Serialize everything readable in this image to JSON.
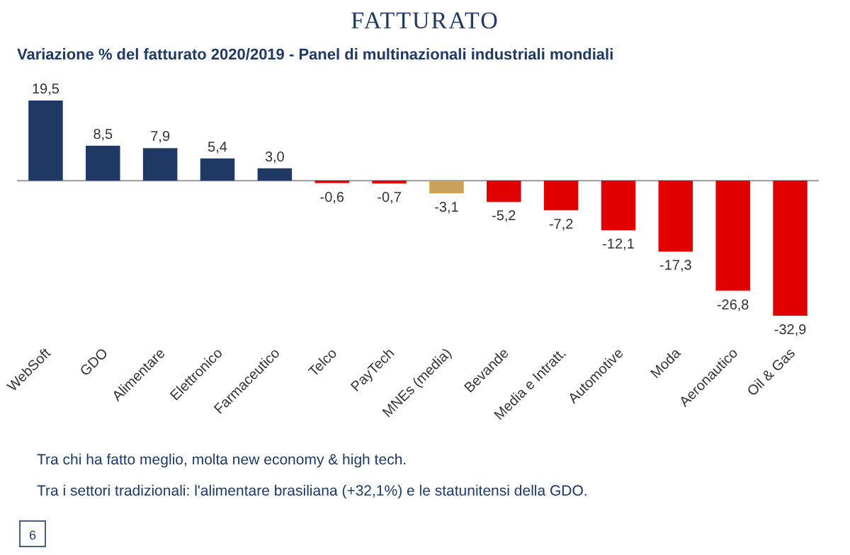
{
  "chart_data": {
    "type": "bar",
    "title": "FATTURATO",
    "subtitle": "Variazione % del fatturato 2020/2019 - Panel di multinazionali industriali mondiali",
    "categories": [
      "WebSoft",
      "GDO",
      "Alimentare",
      "Elettronico",
      "Farmaceutico",
      "Telco",
      "PayTech",
      "MNEs (media)",
      "Bevande",
      "Media e Intratt.",
      "Automotive",
      "Moda",
      "Aeronautico",
      "Oil & Gas"
    ],
    "values": [
      19.5,
      8.5,
      7.9,
      5.4,
      3.0,
      -0.6,
      -0.7,
      -3.1,
      -5.2,
      -7.2,
      -12.1,
      -17.3,
      -26.8,
      -32.9
    ],
    "colors": [
      "#1f3864",
      "#1f3864",
      "#1f3864",
      "#1f3864",
      "#1f3864",
      "#e00000",
      "#e00000",
      "#c9a15a",
      "#e00000",
      "#e00000",
      "#e00000",
      "#e00000",
      "#e00000",
      "#e00000"
    ],
    "value_labels": [
      "19,5",
      "8,5",
      "7,9",
      "5,4",
      "3,0",
      "-0,6",
      "-0,7",
      "-3,1",
      "-5,2",
      "-7,2",
      "-12,1",
      "-17,3",
      "-26,8",
      "-32,9"
    ],
    "annotations": [
      "Tra chi ha fatto meglio, molta new economy & high tech.",
      "Tra i settori tradizionali: l'alimentare brasiliana (+32,1%) e le statunitensi della GDO.",
      "6"
    ]
  }
}
